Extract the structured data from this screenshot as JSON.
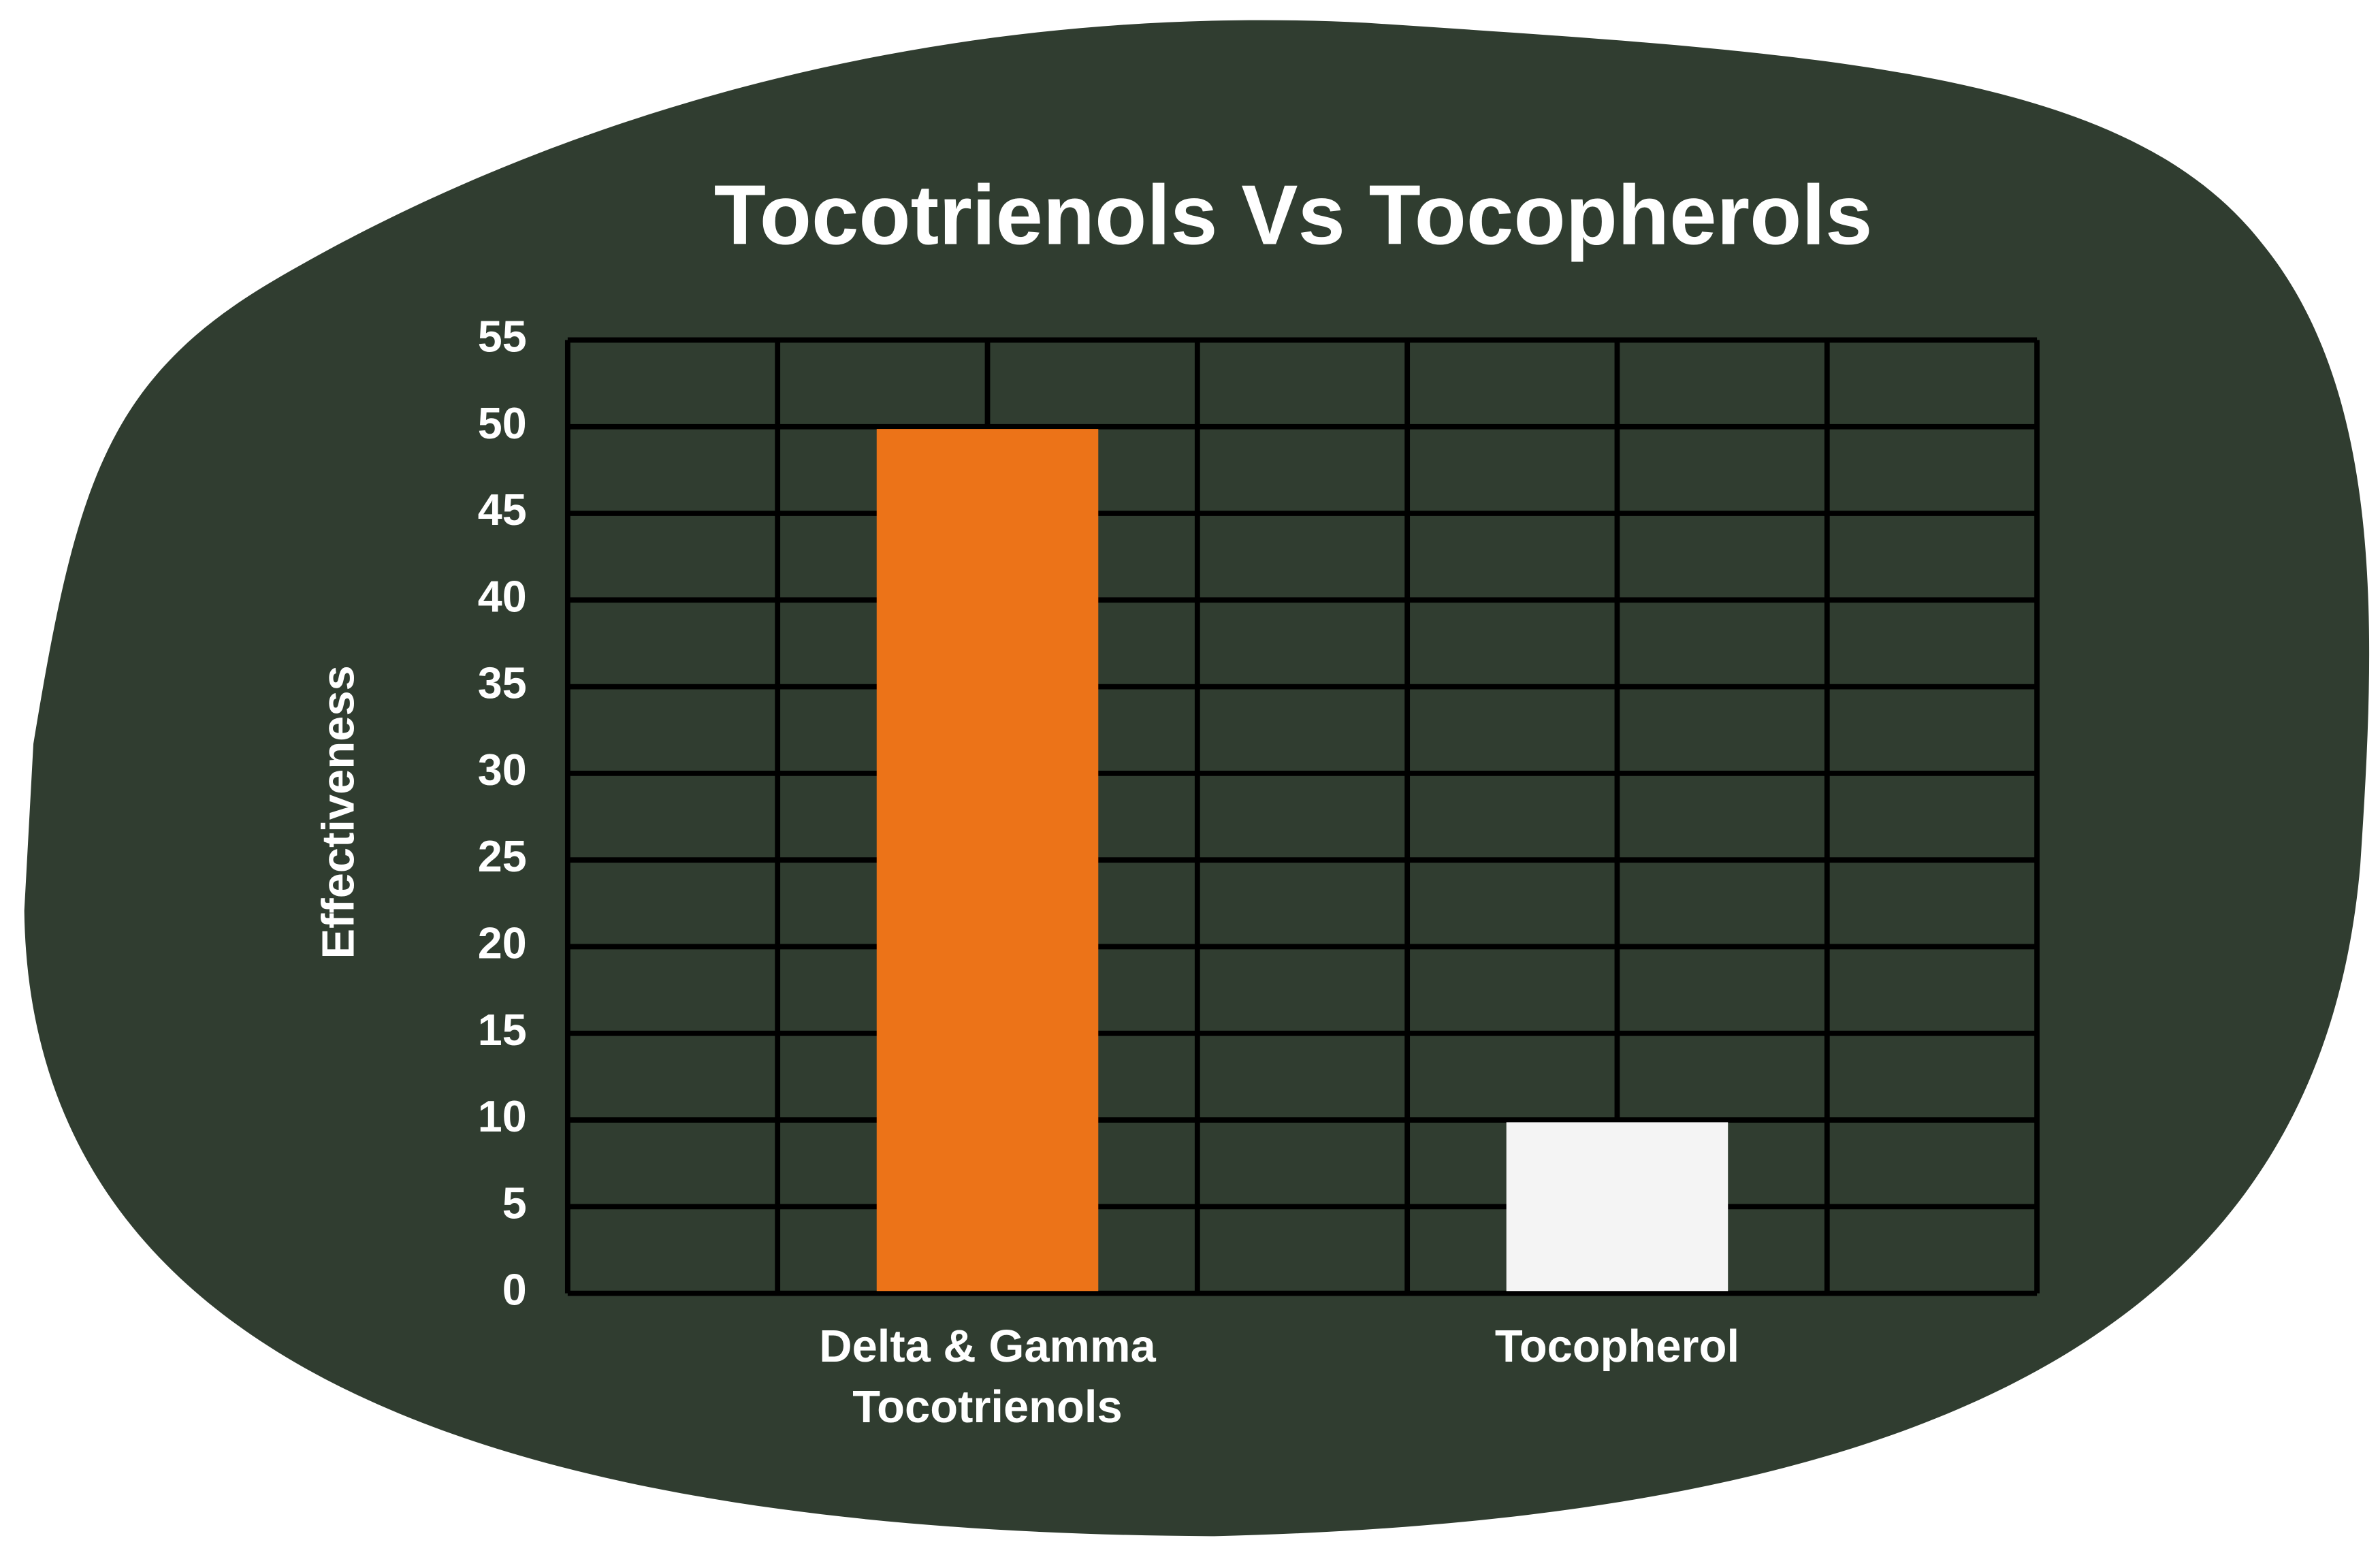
{
  "chart_data": {
    "type": "bar",
    "title": "Tocotrienols Vs Tocopherols",
    "y_label": "Effectiveness",
    "categories": [
      "Delta & Gamma Tocotrienols",
      "Tocopherol"
    ],
    "values": [
      50,
      10
    ],
    "colors": [
      "#ec7318",
      "#f4f4f4"
    ],
    "ylim": [
      0,
      55
    ],
    "yticks": [
      0,
      5,
      10,
      15,
      20,
      25,
      30,
      35,
      40,
      45,
      50,
      55
    ],
    "grid": true
  }
}
